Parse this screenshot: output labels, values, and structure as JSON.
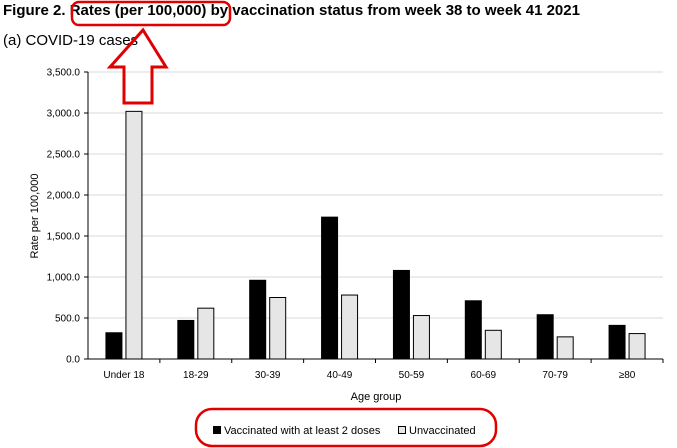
{
  "figure": {
    "label": "Figure 2.",
    "highlighted_text": "Rates (per 100,000)",
    "title_rest": "by vaccination status from week 38 to week 41 2021",
    "subtitle": "(a) COVID-19 cases"
  },
  "annotations": {
    "highlight_color": "#e00000",
    "arrow_direction": "up"
  },
  "colors": {
    "vaccinated": "#000000",
    "unvaccinated": "#e6e6e6",
    "gridline": "#d9d9d9"
  },
  "chart_data": {
    "type": "bar",
    "categories": [
      "Under 18",
      "18-29",
      "30-39",
      "40-49",
      "50-59",
      "60-69",
      "70-79",
      "≥80"
    ],
    "series": [
      {
        "name": "Vaccinated with at least 2 doses",
        "values": [
          320,
          470,
          960,
          1730,
          1080,
          710,
          540,
          410
        ]
      },
      {
        "name": "Unvaccinated",
        "values": [
          3020,
          620,
          750,
          780,
          530,
          350,
          270,
          310
        ]
      }
    ],
    "ylabel": "Rate per 100,000",
    "xlabel": "Age group",
    "ylim": [
      0,
      3500
    ],
    "yticks": [
      "0.0",
      "500.0",
      "1,000.0",
      "1,500.0",
      "2,000.0",
      "2,500.0",
      "3,000.0",
      "3,500.0"
    ],
    "grid": true,
    "legend_position": "bottom"
  }
}
